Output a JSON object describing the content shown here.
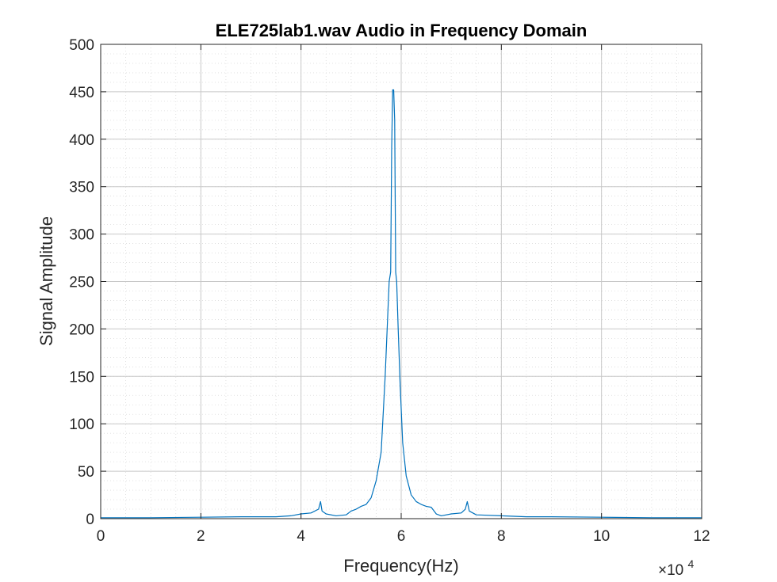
{
  "chart_data": {
    "type": "line",
    "title": "ELE725lab1.wav Audio in Frequency Domain",
    "xlabel": "Frequency(Hz)",
    "ylabel": "Signal Amplitude",
    "xlim": [
      0,
      120000
    ],
    "ylim": [
      0,
      500
    ],
    "x_ticks": [
      0,
      20000,
      40000,
      60000,
      80000,
      100000,
      120000
    ],
    "x_tick_labels": [
      "0",
      "2",
      "4",
      "6",
      "8",
      "10",
      "12"
    ],
    "x_exponent_label": {
      "base": "×10",
      "power": "4"
    },
    "y_ticks": [
      0,
      50,
      100,
      150,
      200,
      250,
      300,
      350,
      400,
      450,
      500
    ],
    "y_tick_labels": [
      "0",
      "50",
      "100",
      "150",
      "200",
      "250",
      "300",
      "350",
      "400",
      "450",
      "500"
    ],
    "grid": true,
    "minor_grid": true,
    "legend": "none",
    "series": [
      {
        "color": "#0072BD",
        "points": [
          [
            0,
            1
          ],
          [
            10000,
            1
          ],
          [
            20000,
            1.5
          ],
          [
            28000,
            2
          ],
          [
            35000,
            2
          ],
          [
            38000,
            3
          ],
          [
            40000,
            5
          ],
          [
            42000,
            6
          ],
          [
            43500,
            10
          ],
          [
            43900,
            18
          ],
          [
            44200,
            8
          ],
          [
            45000,
            5
          ],
          [
            47000,
            3
          ],
          [
            49000,
            4
          ],
          [
            50000,
            8
          ],
          [
            51000,
            10
          ],
          [
            52000,
            13
          ],
          [
            53000,
            15
          ],
          [
            54000,
            22
          ],
          [
            55000,
            40
          ],
          [
            56000,
            70
          ],
          [
            56800,
            150
          ],
          [
            57200,
            200
          ],
          [
            57600,
            250
          ],
          [
            57900,
            260
          ],
          [
            58100,
            390
          ],
          [
            58300,
            452
          ],
          [
            58500,
            452
          ],
          [
            58700,
            420
          ],
          [
            58900,
            260
          ],
          [
            59100,
            250
          ],
          [
            59400,
            200
          ],
          [
            59800,
            140
          ],
          [
            60300,
            80
          ],
          [
            61000,
            45
          ],
          [
            62000,
            25
          ],
          [
            63000,
            18
          ],
          [
            64000,
            15
          ],
          [
            65000,
            13
          ],
          [
            66000,
            12
          ],
          [
            67000,
            5
          ],
          [
            68000,
            3
          ],
          [
            70000,
            5
          ],
          [
            72000,
            6
          ],
          [
            72800,
            10
          ],
          [
            73200,
            18
          ],
          [
            73600,
            8
          ],
          [
            75000,
            4
          ],
          [
            80000,
            3
          ],
          [
            85000,
            2
          ],
          [
            90000,
            2
          ],
          [
            100000,
            1.5
          ],
          [
            110000,
            1
          ],
          [
            120000,
            1
          ]
        ]
      }
    ]
  }
}
